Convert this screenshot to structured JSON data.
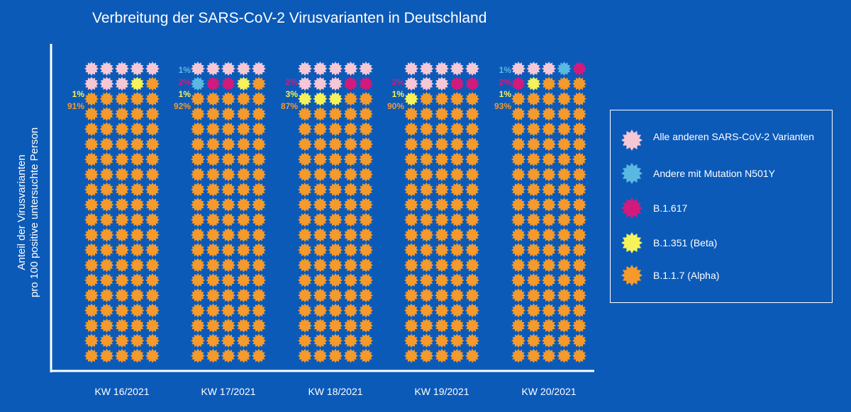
{
  "title": "Verbreitung der SARS-CoV-2 Virusvarianten in Deutschland",
  "colors": {
    "background": "#0c5ab8",
    "alpha": "#f49a2c",
    "beta": "#f6f25a",
    "b1617": "#d21a7c",
    "n501y": "#5bb8e2",
    "others": "#f6c7d5",
    "axis": "#ffffff",
    "label_gray": "#9aa0a8"
  },
  "chart_data": {
    "type": "pictograph",
    "title": "Verbreitung der SARS-CoV-2 Virusvarianten in Deutschland",
    "ylabel": [
      "Anteil der Virusvarianten",
      "pro 100 positive untersuchte Person"
    ],
    "categories": [
      "KW 16/2021",
      "KW 17/2021",
      "KW 18/2021",
      "KW 19/2021",
      "KW 20/2021"
    ],
    "icon": "virus-icon",
    "grid_per_category": {
      "columns": 5,
      "rows": 20,
      "total": 100
    },
    "series": [
      {
        "name": "Alle anderen SARS-CoV-2 Varianten",
        "key": "others",
        "values": [
          8,
          5,
          8,
          8,
          3
        ]
      },
      {
        "name": "Andere mit Mutation N501Y",
        "key": "n501y",
        "values": [
          0,
          1,
          0,
          0,
          1
        ]
      },
      {
        "name": "B.1.617",
        "key": "b1617",
        "values": [
          0,
          2,
          2,
          2,
          2
        ]
      },
      {
        "name": "B.1.351 (Beta)",
        "key": "beta",
        "values": [
          1,
          1,
          3,
          1,
          1
        ]
      },
      {
        "name": "B.1.1.7 (Alpha)",
        "key": "alpha",
        "values": [
          91,
          92,
          87,
          90,
          93
        ]
      }
    ],
    "annotations": [
      {
        "category": "KW 16/2021",
        "labels": [
          {
            "text": "1%",
            "key": "beta"
          },
          {
            "text": "91%",
            "key": "alpha"
          }
        ]
      },
      {
        "category": "KW 17/2021",
        "labels": [
          {
            "text": "1%",
            "key": "n501y"
          },
          {
            "text": "2%",
            "key": "b1617"
          },
          {
            "text": "1%",
            "key": "beta"
          },
          {
            "text": "92%",
            "key": "alpha"
          }
        ]
      },
      {
        "category": "KW 18/2021",
        "labels": [
          {
            "text": "2%",
            "key": "b1617"
          },
          {
            "text": "3%",
            "key": "beta"
          },
          {
            "text": "87%",
            "key": "alpha"
          }
        ]
      },
      {
        "category": "KW 19/2021",
        "labels": [
          {
            "text": "2%",
            "key": "b1617"
          },
          {
            "text": "1%",
            "key": "beta"
          },
          {
            "text": "90%",
            "key": "alpha"
          }
        ]
      },
      {
        "category": "KW 20/2021",
        "labels": [
          {
            "text": "1%",
            "key": "n501y"
          },
          {
            "text": "2%",
            "key": "b1617"
          },
          {
            "text": "1%",
            "key": "beta"
          },
          {
            "text": "93%",
            "key": "alpha"
          }
        ]
      }
    ],
    "legend_position": "right"
  },
  "legend": {
    "items": [
      {
        "key": "others",
        "icon": "virus-icon",
        "label": "Alle anderen SARS-CoV-2 Varianten"
      },
      {
        "key": "n501y",
        "icon": "virus-icon",
        "label": "Andere mit Mutation N501Y"
      },
      {
        "key": "b1617",
        "icon": "virus-icon",
        "label": "B.1.617"
      },
      {
        "key": "beta",
        "icon": "virus-icon",
        "label": "B.1.351 (Beta)"
      },
      {
        "key": "alpha",
        "icon": "virus-icon",
        "label": "B.1.1.7 (Alpha)"
      }
    ]
  }
}
